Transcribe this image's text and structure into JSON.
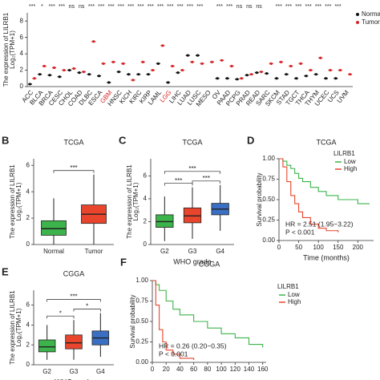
{
  "chart_data": [
    {
      "type": "strip",
      "ylabel": [
        "The expression of LILRB1",
        "Log₂(TPM+1)"
      ],
      "categories": [
        "ACC",
        "BLCA",
        "BRCA",
        "CESC",
        "CHOL",
        "COAD",
        "DLBC",
        "ESCA",
        "GBM",
        "HNSC",
        "KICH",
        "KIRC",
        "KIRP",
        "LAML",
        "LGG",
        "LIHC",
        "LUAD",
        "LUSC",
        "MESO",
        "OV",
        "PAAD",
        "PCPG",
        "PRAD",
        "READ",
        "SARC",
        "SKCM",
        "STAD",
        "TGCT",
        "THCA",
        "THYM",
        "UCEC",
        "UCS",
        "UVM"
      ],
      "category_colors": [
        "#222",
        "#222",
        "#222",
        "#222",
        "#222",
        "#222",
        "#222",
        "#222",
        "#d62728",
        "#222",
        "#222",
        "#222",
        "#222",
        "#222",
        "#d62728",
        "#222",
        "#222",
        "#222",
        "#222",
        "#222",
        "#222",
        "#222",
        "#222",
        "#222",
        "#222",
        "#222",
        "#222",
        "#222",
        "#222",
        "#222",
        "#222",
        "#222",
        "#222"
      ],
      "significance": [
        "***",
        "*",
        "***",
        "***",
        "ns",
        "ns",
        "***",
        "***",
        "***",
        "***",
        "***",
        "***",
        "***",
        "***",
        "***",
        "***",
        "***",
        "***",
        null,
        "***",
        "***",
        "ns",
        "ns",
        "ns",
        null,
        "***",
        "***",
        "***",
        "***",
        "***",
        "***",
        "***",
        null
      ],
      "series": [
        {
          "name": "Normal",
          "color": "#111111",
          "values": [
            0.3,
            1.5,
            1.4,
            1.2,
            2.0,
            1.7,
            1.5,
            1.3,
            0.5,
            1.8,
            1.5,
            1.5,
            1.5,
            2.8,
            0.5,
            1.7,
            3.8,
            3.8,
            null,
            1.0,
            1.0,
            0.9,
            1.4,
            1.7,
            1.6,
            1.0,
            1.5,
            1.0,
            1.3,
            1.5,
            1.0,
            1.0,
            null
          ]
        },
        {
          "name": "Tumor",
          "color": "#d62728",
          "values": [
            1.0,
            2.5,
            2.3,
            2.0,
            2.2,
            1.8,
            5.5,
            2.8,
            3.0,
            2.8,
            0.8,
            3.0,
            2.0,
            5.0,
            2.5,
            2.0,
            3.0,
            2.8,
            3.0,
            3.2,
            2.5,
            1.0,
            1.5,
            1.8,
            2.8,
            3.0,
            2.5,
            2.8,
            2.0,
            3.5,
            2.0,
            2.0,
            1.5
          ]
        }
      ],
      "ylim": [
        0,
        9
      ],
      "yticks": [
        0,
        2,
        4,
        6,
        8
      ]
    },
    {
      "type": "box",
      "panel": "B",
      "title": "TCGA",
      "ylabel": [
        "The expression of LILRB1",
        "Log₂(TPM+1)"
      ],
      "categories": [
        "Normal",
        "Tumor"
      ],
      "colors": [
        "#3cb44b",
        "#e8452c"
      ],
      "boxes": [
        {
          "min": 0,
          "q1": 0.7,
          "median": 1.2,
          "q3": 1.8,
          "max": 3.5
        },
        {
          "min": 0,
          "q1": 1.6,
          "median": 2.3,
          "q3": 3.0,
          "max": 5.3
        }
      ],
      "significance": [
        "***"
      ],
      "ylim": [
        0,
        6.5
      ],
      "yticks": [
        0,
        2,
        4,
        6
      ]
    },
    {
      "type": "box",
      "panel": "C",
      "title": "TCGA",
      "xlabel": "WHO grade",
      "ylabel": [
        "The expression of LILRB1",
        "Log₂(TPM+1)"
      ],
      "categories": [
        "G2",
        "G3",
        "G4"
      ],
      "colors": [
        "#3cb44b",
        "#e8452c",
        "#3a6fc4"
      ],
      "boxes": [
        {
          "min": 0.3,
          "q1": 1.5,
          "median": 2.0,
          "q3": 2.6,
          "max": 4.2
        },
        {
          "min": 0.5,
          "q1": 1.9,
          "median": 2.5,
          "q3": 3.2,
          "max": 5.0
        },
        {
          "min": 1.2,
          "q1": 2.6,
          "median": 3.1,
          "q3": 3.6,
          "max": 5.2
        }
      ],
      "significance": [
        "***",
        "***",
        "***"
      ],
      "ylim": [
        0,
        7.5
      ],
      "yticks": [
        0,
        2,
        4,
        6
      ]
    },
    {
      "type": "km",
      "panel": "D",
      "title": "TCGA",
      "xlabel": "Time (months)",
      "ylabel": "Survival probability",
      "legend_title": "LILRB1",
      "annotations": [
        "HR = 2.51 (1.95−3.22)",
        "P < 0.001"
      ],
      "series": [
        {
          "name": "Low",
          "color": "#3cb44b",
          "x": [
            0,
            10,
            20,
            30,
            40,
            50,
            60,
            80,
            100,
            120,
            150,
            200,
            230
          ],
          "y": [
            1,
            0.97,
            0.92,
            0.88,
            0.82,
            0.76,
            0.72,
            0.65,
            0.6,
            0.55,
            0.5,
            0.45,
            0.45
          ]
        },
        {
          "name": "High",
          "color": "#e8452c",
          "x": [
            0,
            10,
            20,
            30,
            40,
            50,
            60,
            80,
            100,
            120,
            150
          ],
          "y": [
            1,
            0.9,
            0.72,
            0.55,
            0.45,
            0.35,
            0.28,
            0.2,
            0.15,
            0.12,
            0.1
          ]
        }
      ],
      "xlim": [
        0,
        240
      ],
      "xticks": [
        0,
        50,
        100,
        150,
        200
      ],
      "ylim": [
        0,
        1
      ],
      "yticks": [
        {
          "value": 0,
          "label": "0.00"
        },
        {
          "value": 0.25,
          "label": "0.25"
        },
        {
          "value": 0.5,
          "label": "0.50"
        },
        {
          "value": 0.75,
          "label": "0.75"
        },
        {
          "value": 1,
          "label": "1.00"
        }
      ]
    },
    {
      "type": "box",
      "panel": "E",
      "title": "CGGA",
      "xlabel": "WHO grade",
      "ylabel": [
        "The expression of LILRB1",
        "Log₂(TPM+1)"
      ],
      "categories": [
        "G2",
        "G3",
        "G4"
      ],
      "colors": [
        "#3cb44b",
        "#e8452c",
        "#3a6fc4"
      ],
      "boxes": [
        {
          "min": 0.5,
          "q1": 1.3,
          "median": 1.8,
          "q3": 2.5,
          "max": 4.0
        },
        {
          "min": 0.5,
          "q1": 1.6,
          "median": 2.2,
          "q3": 3.0,
          "max": 4.5
        },
        {
          "min": 0.8,
          "q1": 2.0,
          "median": 2.7,
          "q3": 3.4,
          "max": 5.2
        }
      ],
      "significance": [
        "*",
        "*",
        "***"
      ],
      "ylim": [
        0,
        7.5
      ],
      "yticks": [
        0,
        2,
        4,
        6
      ]
    },
    {
      "type": "km",
      "panel": "F",
      "title": "CGGA",
      "ylabel": "Survival probability",
      "legend_title": "LILRB1",
      "annotations": [
        "HR = 0.26 (0.20−0.35)",
        "P < 0.001"
      ],
      "series": [
        {
          "name": "Low",
          "color": "#3cb44b",
          "x": [
            0,
            5,
            10,
            20,
            30,
            40,
            60,
            80,
            100,
            120,
            140,
            160
          ],
          "y": [
            1,
            0.95,
            0.88,
            0.75,
            0.65,
            0.58,
            0.5,
            0.42,
            0.35,
            0.3,
            0.22,
            0.18
          ]
        },
        {
          "name": "High",
          "color": "#e8452c",
          "x": [
            0,
            5,
            10,
            15,
            20,
            30,
            40,
            60
          ],
          "y": [
            1,
            0.7,
            0.4,
            0.25,
            0.15,
            0.1,
            0.05,
            0.03
          ]
        }
      ],
      "xlim": [
        0,
        165
      ],
      "xticks": [
        0,
        20,
        40,
        60,
        80,
        100,
        120,
        140,
        160
      ],
      "ylim": [
        0,
        1
      ],
      "yticks": [
        {
          "value": 0,
          "label": "0.00"
        },
        {
          "value": 0.25,
          "label": "0.25"
        },
        {
          "value": 0.5,
          "label": "0.50"
        },
        {
          "value": 0.75,
          "label": "0.75"
        },
        {
          "value": 1,
          "label": "1.00"
        }
      ]
    }
  ]
}
